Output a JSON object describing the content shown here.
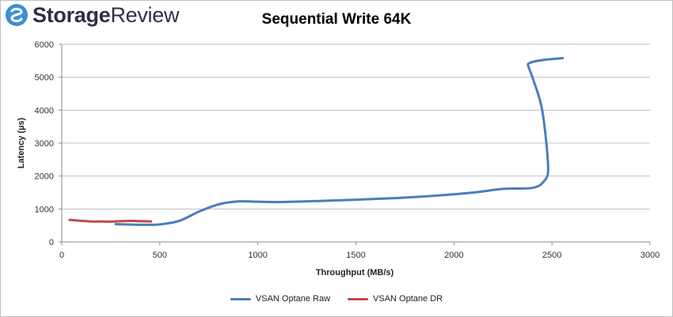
{
  "brand": {
    "name_bold": "Storage",
    "name_regular": "Review",
    "logo_color": "#3d8fd6"
  },
  "chart_data": {
    "type": "line",
    "title": "Sequential Write 64K",
    "xlabel": "Throughput (MB/s)",
    "ylabel": "Latency (µs)",
    "xlim": [
      0,
      3000
    ],
    "ylim": [
      0,
      6000
    ],
    "xticks": [
      0,
      500,
      1000,
      1500,
      2000,
      2500,
      3000
    ],
    "yticks": [
      0,
      1000,
      2000,
      3000,
      4000,
      5000,
      6000
    ],
    "grid": "horizontal",
    "legend_position": "bottom",
    "series": [
      {
        "name": "VSAN Optane Raw",
        "color": "#4a7ebb",
        "x": [
          275,
          420,
          500,
          600,
          700,
          800,
          900,
          1000,
          1100,
          1300,
          1500,
          1700,
          1900,
          2100,
          2250,
          2400,
          2460,
          2480,
          2450,
          2400,
          2380,
          2385,
          2450,
          2555
        ],
        "y": [
          540,
          520,
          530,
          640,
          920,
          1140,
          1230,
          1220,
          1210,
          1240,
          1280,
          1330,
          1400,
          1500,
          1610,
          1640,
          1850,
          2300,
          4000,
          5000,
          5320,
          5430,
          5520,
          5580
        ]
      },
      {
        "name": "VSAN Optane DR",
        "color": "#be4b48",
        "x": [
          40,
          100,
          150,
          200,
          250,
          300,
          350,
          400,
          455
        ],
        "y": [
          670,
          640,
          620,
          620,
          615,
          630,
          640,
          630,
          620
        ]
      }
    ]
  }
}
